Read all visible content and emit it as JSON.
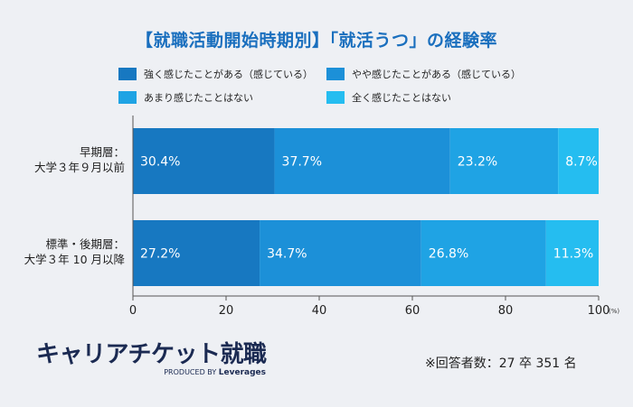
{
  "title": "【就職活動開始時期別】「就活うつ」の経験率",
  "legend": [
    {
      "label": "強く感じたことがある（感じている）",
      "color": "#1778c1"
    },
    {
      "label": "やや感じたことがある（感じている）",
      "color": "#1c90d8"
    },
    {
      "label": "あまり感じたことはない",
      "color": "#1fa3e4"
    },
    {
      "label": "全く感じたことはない",
      "color": "#25bdf0"
    }
  ],
  "chart_data": {
    "type": "bar",
    "orientation": "horizontal",
    "stacked": true,
    "categories": [
      [
        "早期層：",
        "大学３年９月以前"
      ],
      [
        "標準・後期層：",
        "大学３年 10 月以降"
      ]
    ],
    "series": [
      {
        "name": "強く感じたことがある（感じている）",
        "values": [
          30.4,
          27.2
        ],
        "labels": [
          "30.4%",
          "27.2%"
        ]
      },
      {
        "name": "やや感じたことがある（感じている）",
        "values": [
          37.7,
          34.7
        ],
        "labels": [
          "37.7%",
          "34.7%"
        ]
      },
      {
        "name": "あまり感じたことはない",
        "values": [
          23.2,
          26.8
        ],
        "labels": [
          "23.2%",
          "26.8%"
        ]
      },
      {
        "name": "全く感じたことはない",
        "values": [
          8.7,
          11.3
        ],
        "labels": [
          "8.7%",
          "11.3%"
        ]
      }
    ],
    "xlim": [
      0,
      100
    ],
    "xticks": [
      "0",
      "20",
      "40",
      "60",
      "80",
      "100"
    ],
    "x_unit": "(%)",
    "grid": false,
    "legend_position": "top"
  },
  "logo": {
    "main": "キャリアチケット就職",
    "sub_prefix": "PRODUCED BY",
    "sub_brand": "Leverages"
  },
  "note": "※回答者数：27 卒 351 名"
}
